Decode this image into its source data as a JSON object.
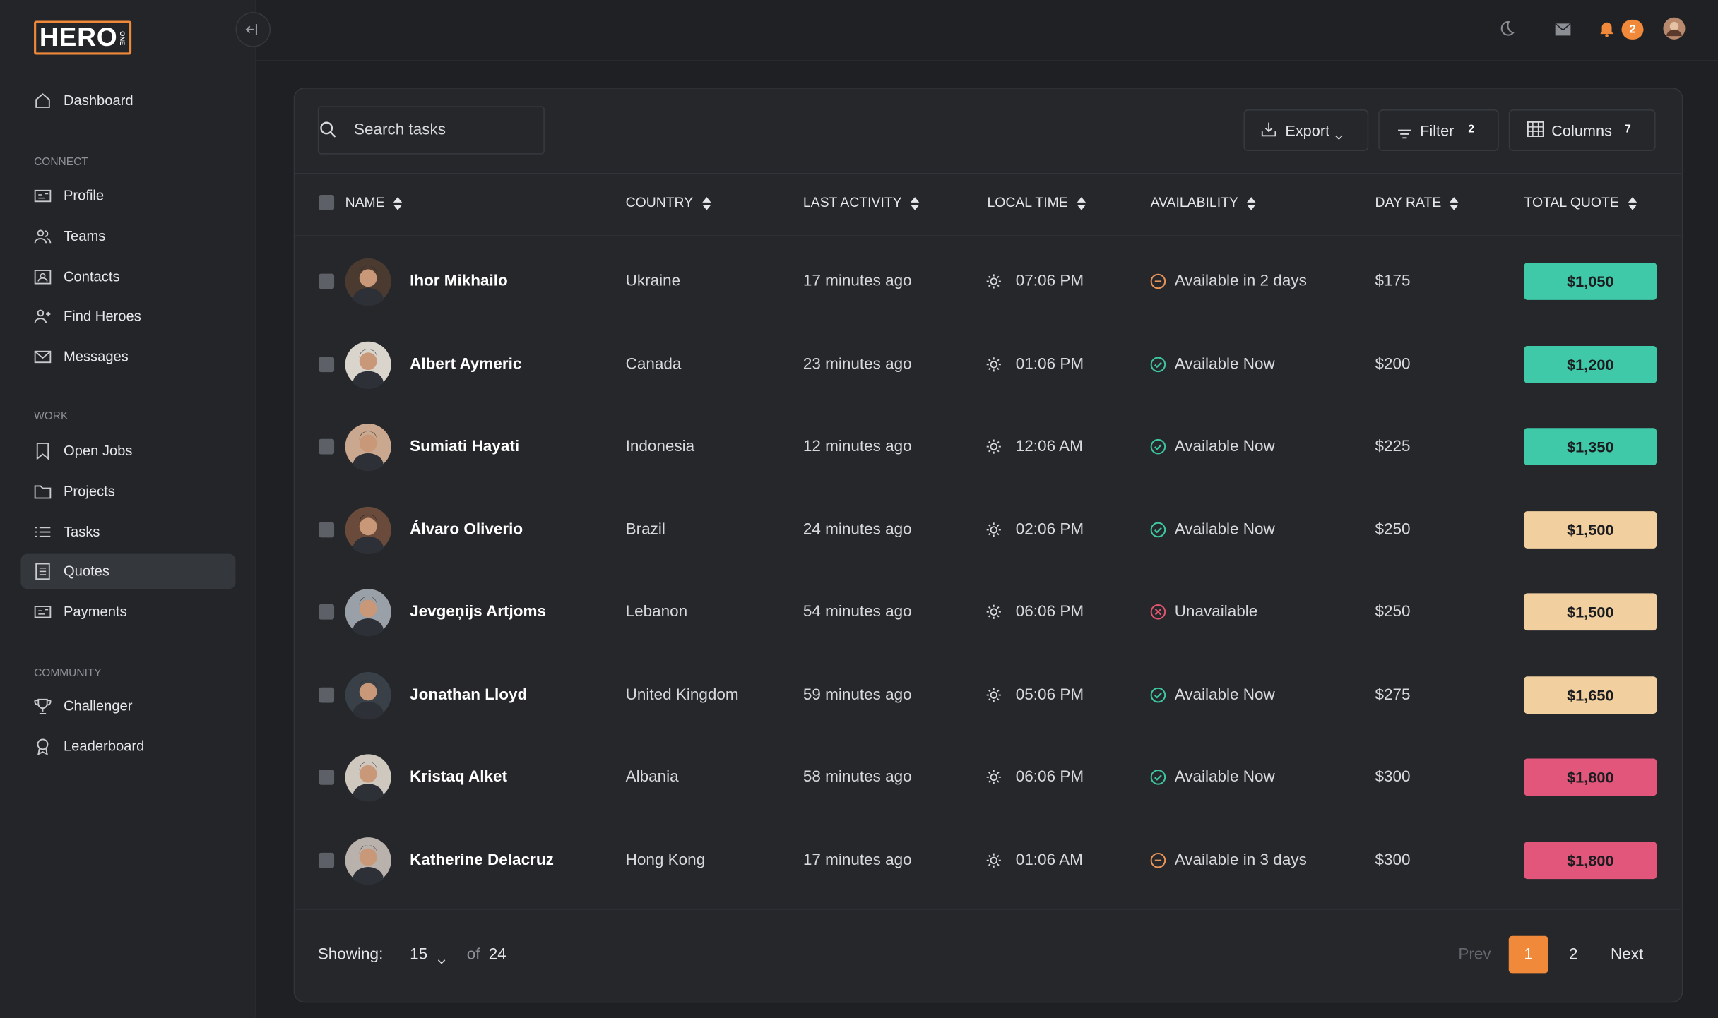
{
  "logo": {
    "text": "HERO",
    "tag": "ONE"
  },
  "header": {
    "notifications": 2
  },
  "sidebar": {
    "top": [
      {
        "label": "Dashboard",
        "icon": "home"
      }
    ],
    "sections": [
      {
        "title": "CONNECT",
        "items": [
          {
            "label": "Profile",
            "icon": "card"
          },
          {
            "label": "Teams",
            "icon": "users"
          },
          {
            "label": "Contacts",
            "icon": "contact"
          },
          {
            "label": "Find Heroes",
            "icon": "useradd"
          },
          {
            "label": "Messages",
            "icon": "mail"
          }
        ]
      },
      {
        "title": "WORK",
        "items": [
          {
            "label": "Open Jobs",
            "icon": "bookmark"
          },
          {
            "label": "Projects",
            "icon": "folder"
          },
          {
            "label": "Tasks",
            "icon": "list"
          },
          {
            "label": "Quotes",
            "icon": "doc",
            "active": true
          },
          {
            "label": "Payments",
            "icon": "card"
          }
        ]
      },
      {
        "title": "COMMUNITY",
        "items": [
          {
            "label": "Challenger",
            "icon": "trophy"
          },
          {
            "label": "Leaderboard",
            "icon": "medal"
          }
        ]
      }
    ]
  },
  "toolbar": {
    "search_placeholder": "Search tasks",
    "export": "Export",
    "filter": "Filter",
    "filter_count": 2,
    "columns": "Columns",
    "columns_count": 7
  },
  "table": {
    "columns": [
      "NAME",
      "COUNTRY",
      "LAST ACTIVITY",
      "LOCAL TIME",
      "AVAILABILITY",
      "DAY RATE",
      "TOTAL QUOTE"
    ],
    "rows": [
      {
        "name": "Ihor Mikhailo",
        "country": "Ukraine",
        "last_activity": "17 minutes ago",
        "local_time": "07:06 PM",
        "availability": "Available in 2 days",
        "status": "soon",
        "day_rate": "$175",
        "total_quote": "$1,050",
        "tone": "teal"
      },
      {
        "name": "Albert Aymeric",
        "country": "Canada",
        "last_activity": "23 minutes ago",
        "local_time": "01:06 PM",
        "availability": "Available Now",
        "status": "now",
        "day_rate": "$200",
        "total_quote": "$1,200",
        "tone": "teal"
      },
      {
        "name": "Sumiati Hayati",
        "country": "Indonesia",
        "last_activity": "12 minutes ago",
        "local_time": "12:06 AM",
        "availability": "Available Now",
        "status": "now",
        "day_rate": "$225",
        "total_quote": "$1,350",
        "tone": "teal"
      },
      {
        "name": "Álvaro Oliverio",
        "country": "Brazil",
        "last_activity": "24 minutes ago",
        "local_time": "02:06 PM",
        "availability": "Available Now",
        "status": "now",
        "day_rate": "$250",
        "total_quote": "$1,500",
        "tone": "peach"
      },
      {
        "name": "Jevgeņijs Artjoms",
        "country": "Lebanon",
        "last_activity": "54 minutes ago",
        "local_time": "06:06 PM",
        "availability": "Unavailable",
        "status": "none",
        "day_rate": "$250",
        "total_quote": "$1,500",
        "tone": "peach"
      },
      {
        "name": "Jonathan Lloyd",
        "country": "United Kingdom",
        "last_activity": "59 minutes ago",
        "local_time": "05:06 PM",
        "availability": "Available Now",
        "status": "now",
        "day_rate": "$275",
        "total_quote": "$1,650",
        "tone": "peach"
      },
      {
        "name": "Kristaq Alket",
        "country": "Albania",
        "last_activity": "58 minutes ago",
        "local_time": "06:06 PM",
        "availability": "Available Now",
        "status": "now",
        "day_rate": "$300",
        "total_quote": "$1,800",
        "tone": "pink"
      },
      {
        "name": "Katherine Delacruz",
        "country": "Hong Kong",
        "last_activity": "17 minutes ago",
        "local_time": "01:06 AM",
        "availability": "Available in 3 days",
        "status": "soon",
        "day_rate": "$300",
        "total_quote": "$1,800",
        "tone": "pink"
      }
    ]
  },
  "footer": {
    "showing": "Showing:",
    "per_page": 15,
    "of": "of",
    "total": 24,
    "prev": "Prev",
    "pages": [
      1,
      2
    ],
    "current": 1,
    "next": "Next"
  }
}
